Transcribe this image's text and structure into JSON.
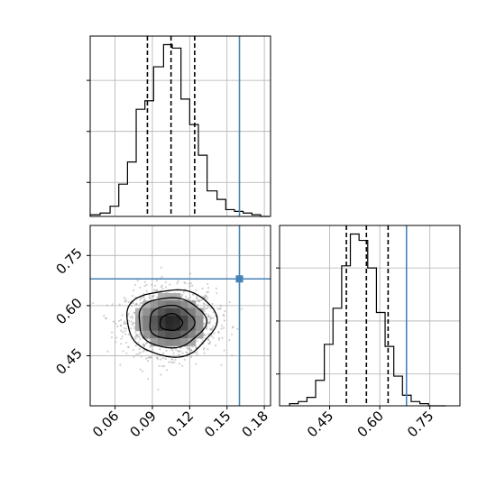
{
  "chart_data": [
    {
      "type": "histogram",
      "panel": "top-left",
      "variable": "x",
      "xlim": [
        0.04,
        0.185
      ],
      "bin_edges": [
        0.04,
        0.048,
        0.056,
        0.063,
        0.07,
        0.077,
        0.084,
        0.091,
        0.099,
        0.106,
        0.113,
        0.12,
        0.127,
        0.134,
        0.142,
        0.149,
        0.156,
        0.163,
        0.17,
        0.177,
        0.184
      ],
      "counts": [
        1,
        2,
        6,
        19,
        32,
        63,
        68,
        88,
        101,
        99,
        69,
        54,
        36,
        15,
        10,
        4,
        3,
        2,
        1,
        0
      ],
      "quantiles": [
        0.086,
        0.105,
        0.124
      ],
      "truth": 0.16,
      "grid": true,
      "y_ticks_labeled": false
    },
    {
      "type": "scatter-contour",
      "panel": "bottom-left",
      "x_variable": "x",
      "y_variable": "y",
      "xlim": [
        0.04,
        0.185
      ],
      "ylim": [
        0.3,
        0.84
      ],
      "x_ticks": [
        "0.06",
        "0.09",
        "0.12",
        "0.15",
        "0.18"
      ],
      "y_ticks": [
        "0.45",
        "0.60",
        "0.75"
      ],
      "center": [
        0.105,
        0.55
      ],
      "spread": [
        0.018,
        0.05
      ],
      "truth": [
        0.16,
        0.68
      ],
      "grid": true
    },
    {
      "type": "histogram",
      "panel": "bottom-right",
      "variable": "y",
      "xlim": [
        0.3,
        0.84
      ],
      "bin_edges": [
        0.33,
        0.356,
        0.382,
        0.408,
        0.434,
        0.46,
        0.486,
        0.512,
        0.538,
        0.564,
        0.59,
        0.616,
        0.642,
        0.668,
        0.694,
        0.72,
        0.746,
        0.772,
        0.798
      ],
      "counts": [
        1,
        2,
        4,
        12,
        29,
        46,
        66,
        81,
        78,
        65,
        44,
        28,
        14,
        5,
        2,
        1,
        0,
        0
      ],
      "quantiles": [
        0.5,
        0.56,
        0.625
      ],
      "truth": 0.68,
      "x_ticks": [
        "0.45",
        "0.60",
        "0.75"
      ],
      "grid": true,
      "y_ticks_labeled": false
    }
  ],
  "colors": {
    "truth": "#4682b4",
    "line": "#000000",
    "grid": "#b0b0b0",
    "points": "#9a9a9a"
  }
}
